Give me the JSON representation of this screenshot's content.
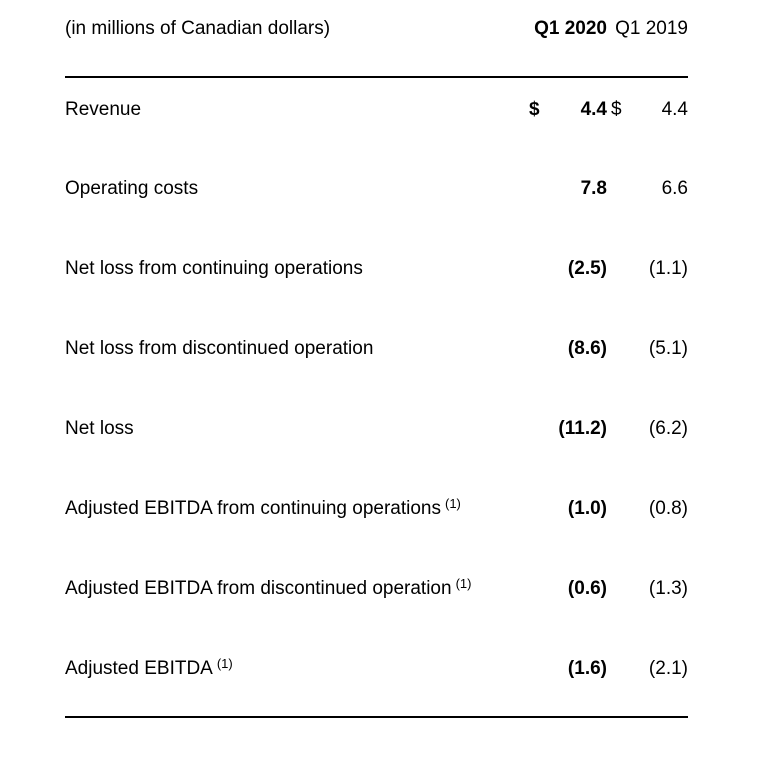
{
  "colors": {
    "background": "#ffffff",
    "text": "#000000",
    "rule": "#000000"
  },
  "table": {
    "unit_label": "(in millions of Canadian dollars)",
    "currency_symbol": "$",
    "columns": [
      {
        "label": "Q1 2020"
      },
      {
        "label": "Q1 2019"
      }
    ],
    "rows": [
      {
        "label": "Revenue",
        "q1_2020": "4.4",
        "q1_2019": "4.4"
      },
      {
        "label": "Operating costs",
        "q1_2020": "7.8",
        "q1_2019": "6.6"
      },
      {
        "label": "Net loss from continuing operations",
        "q1_2020": "(2.5)",
        "q1_2019": "(1.1)"
      },
      {
        "label": "Net loss from discontinued operation",
        "q1_2020": "(8.6)",
        "q1_2019": "(5.1)"
      },
      {
        "label": "Net loss",
        "q1_2020": "(11.2)",
        "q1_2019": "(6.2)"
      },
      {
        "label": "Adjusted EBITDA from continuing operations",
        "footnote": "(1)",
        "q1_2020": "(1.0)",
        "q1_2019": "(0.8)"
      },
      {
        "label": "Adjusted EBITDA from discontinued operation",
        "footnote": "(1)",
        "q1_2020": "(0.6)",
        "q1_2019": "(1.3)"
      },
      {
        "label": "Adjusted EBITDA",
        "footnote": "(1)",
        "q1_2020": "(1.6)",
        "q1_2019": "(2.1)"
      }
    ]
  }
}
